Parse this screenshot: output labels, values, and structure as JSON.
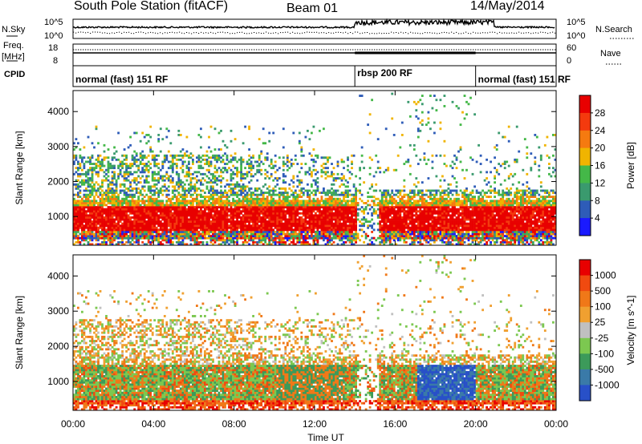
{
  "header": {
    "station": "South Pole Station (fitACF)",
    "beam": "Beam 01",
    "date": "14/May/2014"
  },
  "left_labels": {
    "nsky": "N.Sky",
    "freq": "Freq.",
    "freq_unit": "[MHz]",
    "cpid": "CPID"
  },
  "right_labels": {
    "nsearch": "N.Search",
    "nave": "Nave"
  },
  "noise_axis": {
    "left_top": "10^5",
    "left_bottom": "10^0",
    "right_top": "10^5",
    "right_bottom": "10^0"
  },
  "freq_axis": {
    "top": "18",
    "bottom": "8"
  },
  "nave_axis": {
    "top": "60",
    "bottom": "0"
  },
  "cpid_segments": [
    {
      "label": "normal (fast) 151 RF",
      "start_hour": 0,
      "end_hour": 14
    },
    {
      "label": "rbsp 200 RF",
      "start_hour": 14,
      "end_hour": 20
    },
    {
      "label": "normal (fast) 151 RF",
      "start_hour": 20,
      "end_hour": 24
    }
  ],
  "chart_data": [
    {
      "type": "heatmap",
      "xlabel": "Time UT",
      "ylabel": "Slant Range [km]",
      "x_ticks": [
        "00:00",
        "04:00",
        "08:00",
        "12:00",
        "16:00",
        "20:00",
        "00:00"
      ],
      "x_tick_hours": [
        0,
        4,
        8,
        12,
        16,
        20,
        24
      ],
      "y_ticks": [
        "1000",
        "2000",
        "3000",
        "4000"
      ],
      "y_tick_values": [
        1000,
        2000,
        3000,
        4000
      ],
      "ylim": [
        180,
        4600
      ],
      "xlim": [
        0,
        24
      ],
      "colorbar": {
        "label": "Power [dB]",
        "ticks": [
          "4",
          "8",
          "12",
          "16",
          "20",
          "24",
          "28"
        ],
        "colors": [
          "#1a1aff",
          "#2e5cb8",
          "#3a9a6e",
          "#44b848",
          "#f0b400",
          "#f57a10",
          "#f43a0e",
          "#e80000"
        ]
      }
    },
    {
      "type": "heatmap",
      "xlabel": "Time UT",
      "ylabel": "Slant Range [km]",
      "x_ticks": [
        "00:00",
        "04:00",
        "08:00",
        "12:00",
        "16:00",
        "20:00",
        "00:00"
      ],
      "x_tick_hours": [
        0,
        4,
        8,
        12,
        16,
        20,
        24
      ],
      "y_ticks": [
        "1000",
        "2000",
        "3000",
        "4000"
      ],
      "y_tick_values": [
        1000,
        2000,
        3000,
        4000
      ],
      "ylim": [
        180,
        4600
      ],
      "xlim": [
        0,
        24
      ],
      "colorbar": {
        "label": "Velocity [m s^-1]",
        "ticks": [
          "1000",
          "500",
          "100",
          "25",
          "-25",
          "-100",
          "-500",
          "-1000"
        ],
        "colors": [
          "#2850c8",
          "#3a7aa8",
          "#3c9a5a",
          "#7cc850",
          "#c0c0c0",
          "#f0a030",
          "#f07818",
          "#f04a10",
          "#e80000"
        ]
      }
    }
  ],
  "colors": {
    "frame": "#000000",
    "background": "#ffffff"
  }
}
